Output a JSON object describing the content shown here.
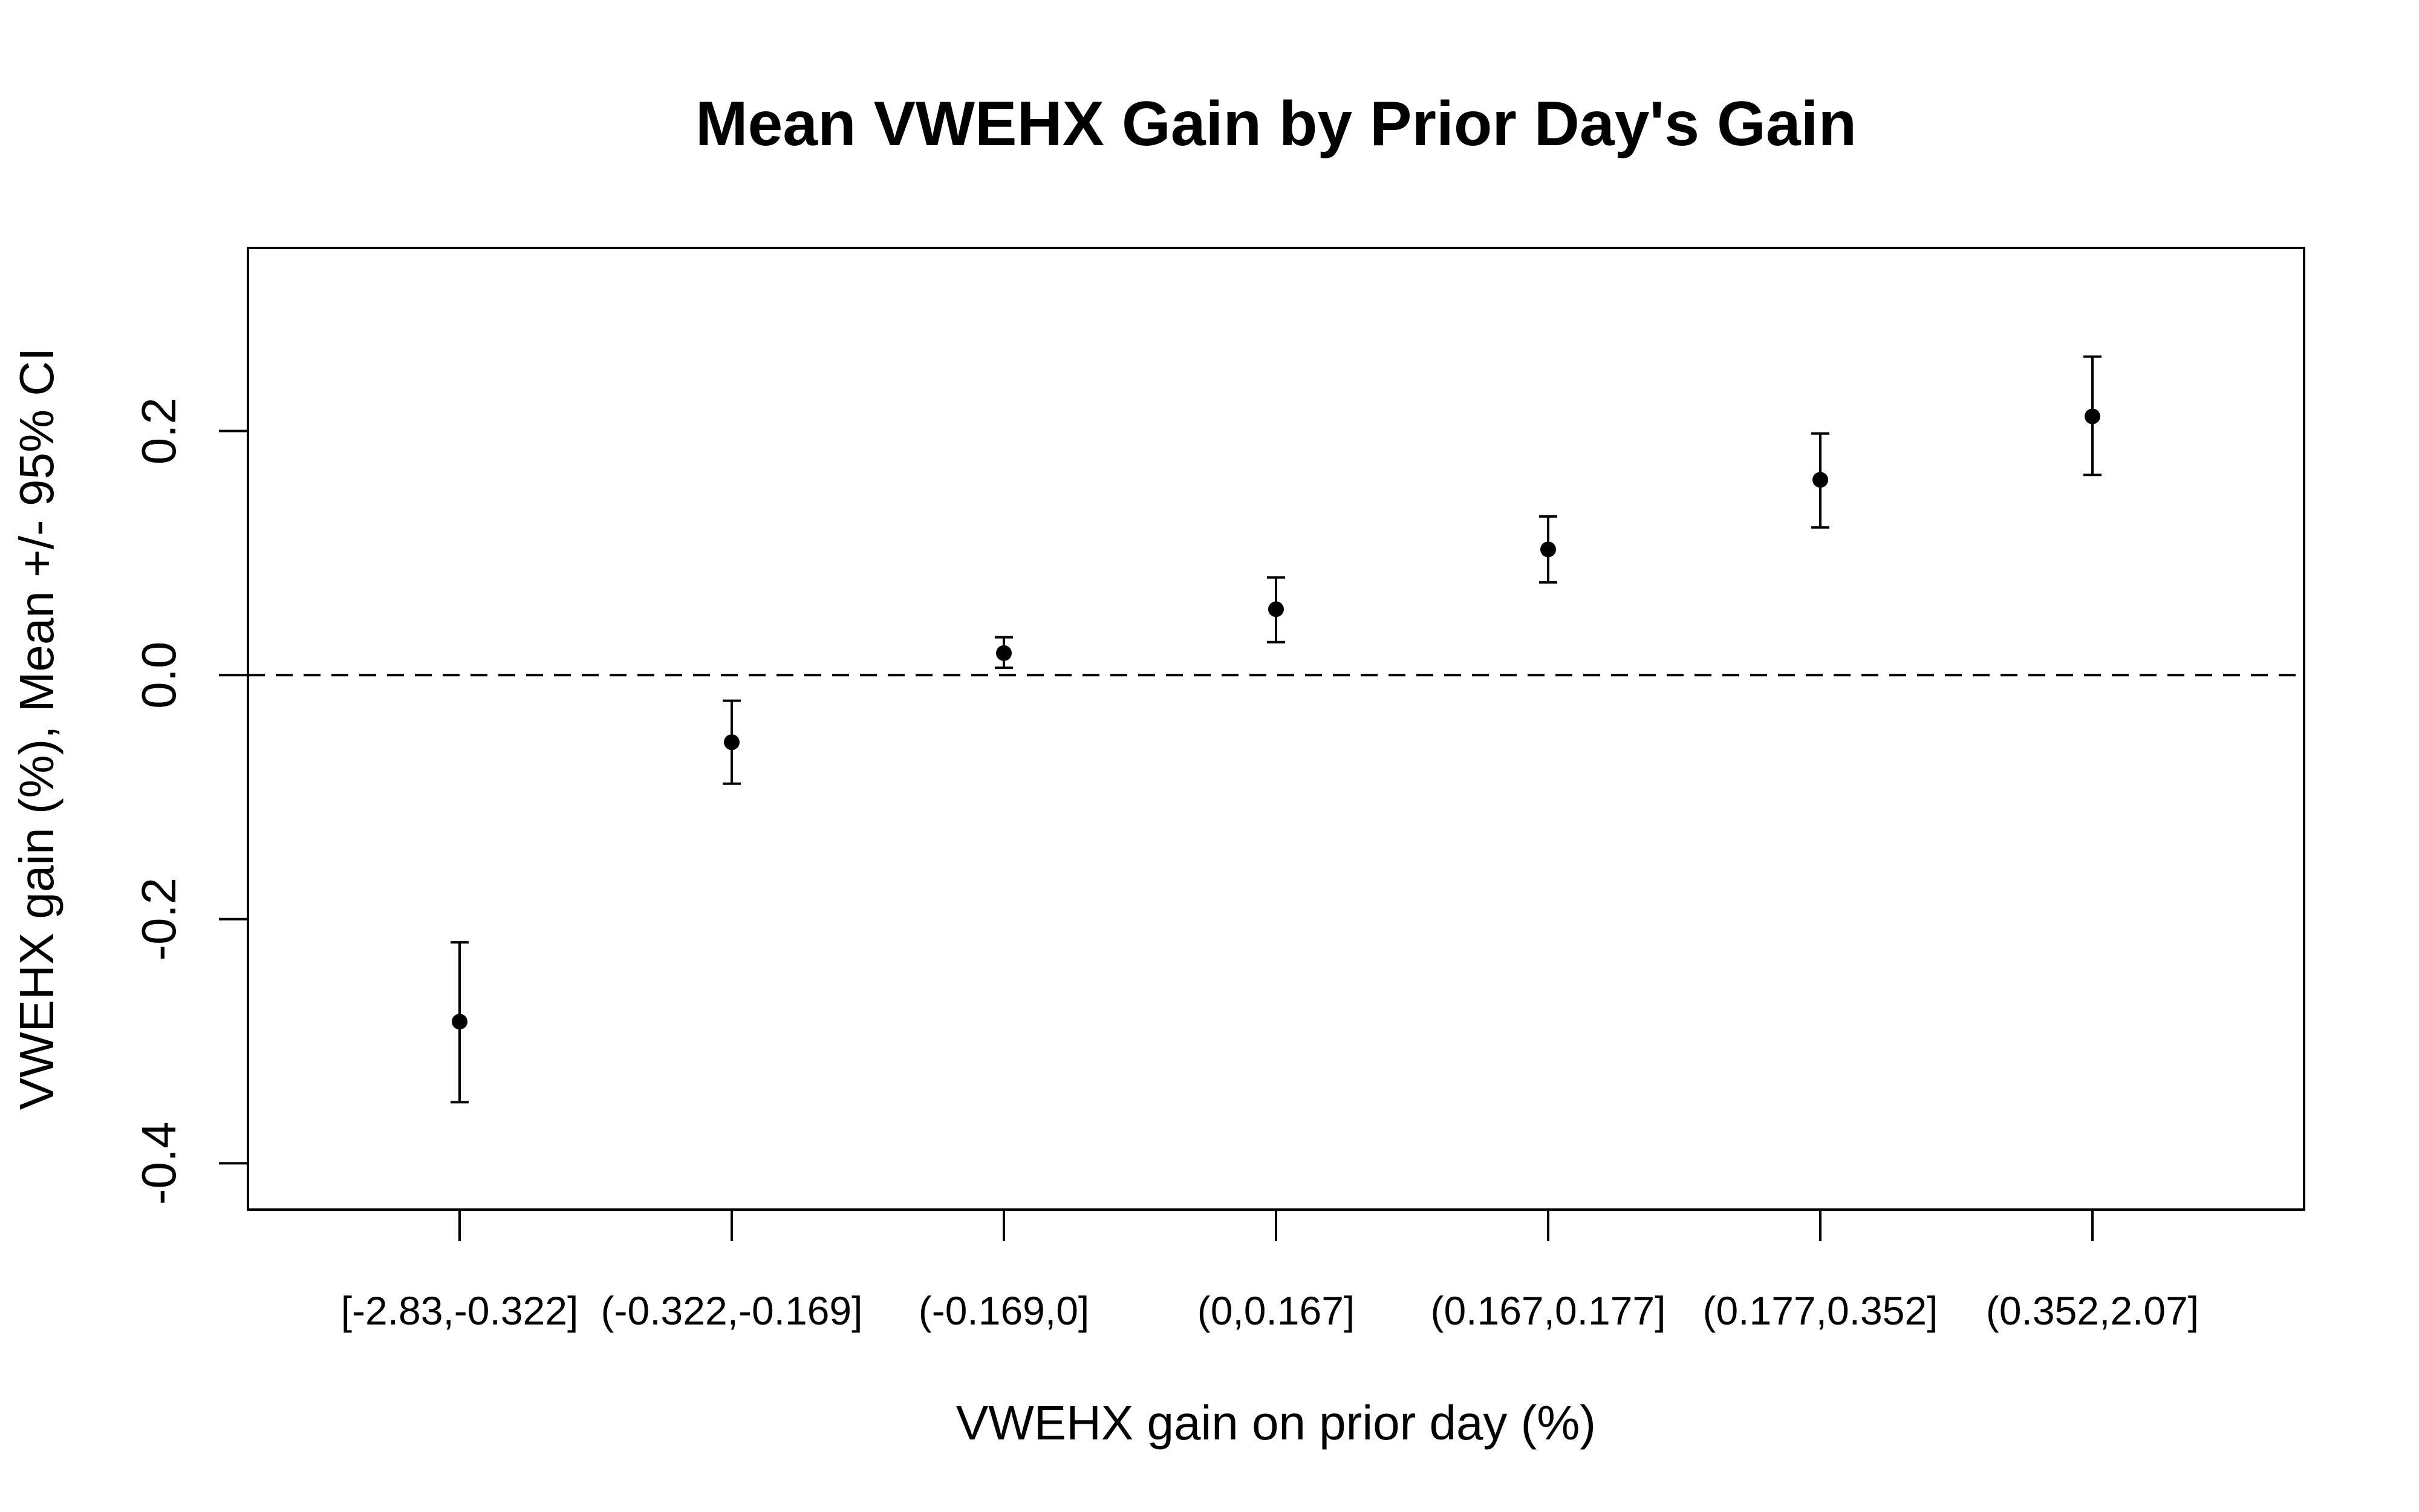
{
  "chart_data": {
    "type": "scatter",
    "title": "Mean VWEHX Gain by Prior Day's Gain",
    "xlabel": "VWEHX gain on prior day (%)",
    "ylabel": "VWEHX gain (%), Mean +/- 95% CI",
    "categories": [
      "[-2.83,-0.322]",
      "(-0.322,-0.169]",
      "(-0.169,0]",
      "(0,0.167]",
      "(0.167,0.177]",
      "(0.177,0.352]",
      "(0.352,2.07]"
    ],
    "series": [
      {
        "values": [
          -0.284,
          -0.055,
          0.018,
          0.054,
          0.103,
          0.16,
          0.212
        ],
        "ci_lower": [
          -0.35,
          -0.089,
          0.006,
          0.027,
          0.076,
          0.121,
          0.164
        ],
        "ci_upper": [
          -0.219,
          -0.021,
          0.031,
          0.08,
          0.13,
          0.198,
          0.261
        ]
      }
    ],
    "yticks": [
      -0.4,
      -0.2,
      0.0,
      0.2
    ],
    "ytick_labels": [
      "-0.4",
      "-0.2",
      "0.0",
      "0.2"
    ],
    "ylim": [
      -0.438,
      0.35
    ],
    "reference_line": {
      "y": 0,
      "style": "dashed"
    },
    "grid": false,
    "legend": "none",
    "colors": {
      "points": "#000000",
      "axes": "#000000",
      "background": "#ffffff"
    }
  }
}
